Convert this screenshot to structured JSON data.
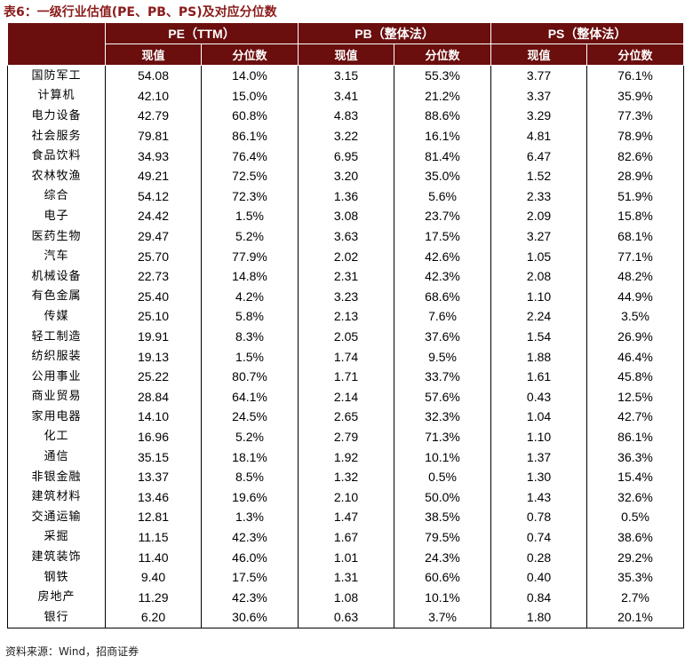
{
  "title": "表6：一级行业估值(PE、PB、PS)及对应分位数",
  "header": {
    "groups": [
      "PE（TTM）",
      "PB（整体法）",
      "PS（整体法）"
    ],
    "sub": [
      "现值",
      "分位数",
      "现值",
      "分位数",
      "现值",
      "分位数"
    ]
  },
  "rows": [
    [
      "国防军工",
      "54.08",
      "14.0%",
      "3.15",
      "55.3%",
      "3.77",
      "76.1%"
    ],
    [
      "计算机",
      "42.10",
      "15.0%",
      "3.41",
      "21.2%",
      "3.37",
      "35.9%"
    ],
    [
      "电力设备",
      "42.79",
      "60.8%",
      "4.83",
      "88.6%",
      "3.29",
      "77.3%"
    ],
    [
      "社会服务",
      "79.81",
      "86.1%",
      "3.22",
      "16.1%",
      "4.81",
      "78.9%"
    ],
    [
      "食品饮料",
      "34.93",
      "76.4%",
      "6.95",
      "81.4%",
      "6.47",
      "82.6%"
    ],
    [
      "农林牧渔",
      "49.21",
      "72.5%",
      "3.20",
      "35.0%",
      "1.52",
      "28.9%"
    ],
    [
      "综合",
      "54.12",
      "72.3%",
      "1.36",
      "5.6%",
      "2.33",
      "51.9%"
    ],
    [
      "电子",
      "24.42",
      "1.5%",
      "3.08",
      "23.7%",
      "2.09",
      "15.8%"
    ],
    [
      "医药生物",
      "29.47",
      "5.2%",
      "3.63",
      "17.5%",
      "3.27",
      "68.1%"
    ],
    [
      "汽车",
      "25.70",
      "77.9%",
      "2.02",
      "42.6%",
      "1.05",
      "77.1%"
    ],
    [
      "机械设备",
      "22.73",
      "14.8%",
      "2.31",
      "42.3%",
      "2.08",
      "48.2%"
    ],
    [
      "有色金属",
      "25.40",
      "4.2%",
      "3.23",
      "68.6%",
      "1.10",
      "44.9%"
    ],
    [
      "传媒",
      "25.10",
      "5.8%",
      "2.13",
      "7.6%",
      "2.24",
      "3.5%"
    ],
    [
      "轻工制造",
      "19.91",
      "8.3%",
      "2.05",
      "37.6%",
      "1.54",
      "26.9%"
    ],
    [
      "纺织服装",
      "19.13",
      "1.5%",
      "1.74",
      "9.5%",
      "1.88",
      "46.4%"
    ],
    [
      "公用事业",
      "25.22",
      "80.7%",
      "1.71",
      "33.7%",
      "1.61",
      "45.8%"
    ],
    [
      "商业贸易",
      "28.84",
      "64.1%",
      "2.14",
      "57.6%",
      "0.43",
      "12.5%"
    ],
    [
      "家用电器",
      "14.10",
      "24.5%",
      "2.65",
      "32.3%",
      "1.04",
      "42.7%"
    ],
    [
      "化工",
      "16.96",
      "5.2%",
      "2.79",
      "71.3%",
      "1.10",
      "86.1%"
    ],
    [
      "通信",
      "35.15",
      "18.1%",
      "1.92",
      "10.1%",
      "1.37",
      "36.3%"
    ],
    [
      "非银金融",
      "13.37",
      "8.5%",
      "1.32",
      "0.5%",
      "1.30",
      "15.4%"
    ],
    [
      "建筑材料",
      "13.46",
      "19.6%",
      "2.10",
      "50.0%",
      "1.43",
      "32.6%"
    ],
    [
      "交通运输",
      "12.81",
      "1.3%",
      "1.47",
      "38.5%",
      "0.78",
      "0.5%"
    ],
    [
      "采掘",
      "11.15",
      "42.3%",
      "1.67",
      "79.5%",
      "0.74",
      "38.6%"
    ],
    [
      "建筑装饰",
      "11.40",
      "46.0%",
      "1.01",
      "24.3%",
      "0.28",
      "29.2%"
    ],
    [
      "钢铁",
      "9.40",
      "17.5%",
      "1.31",
      "60.6%",
      "0.40",
      "35.3%"
    ],
    [
      "房地产",
      "11.29",
      "42.3%",
      "1.08",
      "10.1%",
      "0.84",
      "2.7%"
    ],
    [
      "银行",
      "6.20",
      "30.6%",
      "0.63",
      "3.7%",
      "1.80",
      "20.1%"
    ]
  ],
  "source": "资料来源：Wind，招商证券",
  "colors": {
    "header_bg": "#6b0e0e",
    "title": "#8b1a1a"
  }
}
